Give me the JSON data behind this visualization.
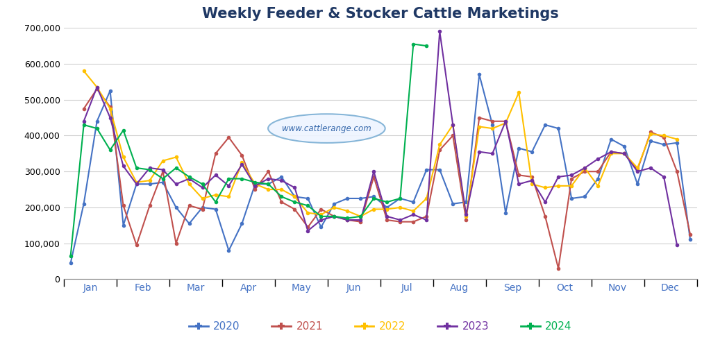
{
  "title": "Weekly Feeder & Stocker Cattle Marketings",
  "title_color": "#1F3864",
  "bg_color": "#FFFFFF",
  "watermark": "www.cattlerange.com",
  "ylim": [
    0,
    700000
  ],
  "yticks": [
    0,
    100000,
    200000,
    300000,
    400000,
    500000,
    600000,
    700000
  ],
  "series": {
    "2020": {
      "color": "#4472C4",
      "values": [
        45000,
        210000,
        440000,
        525000,
        150000,
        265000,
        265000,
        270000,
        200000,
        155000,
        200000,
        195000,
        80000,
        155000,
        265000,
        265000,
        285000,
        230000,
        225000,
        145000,
        210000,
        225000,
        225000,
        230000,
        200000,
        225000,
        215000,
        305000,
        305000,
        210000,
        215000,
        570000,
        430000,
        185000,
        365000,
        355000,
        430000,
        420000,
        225000,
        230000,
        280000,
        390000,
        370000,
        265000,
        385000,
        375000,
        380000,
        110000
      ]
    },
    "2021": {
      "color": "#C0504D",
      "values": [
        null,
        475000,
        530000,
        480000,
        205000,
        95000,
        205000,
        300000,
        100000,
        205000,
        195000,
        350000,
        395000,
        345000,
        250000,
        300000,
        215000,
        195000,
        145000,
        195000,
        175000,
        165000,
        160000,
        285000,
        165000,
        160000,
        160000,
        175000,
        360000,
        400000,
        165000,
        450000,
        440000,
        440000,
        290000,
        285000,
        175000,
        30000,
        280000,
        300000,
        300000,
        355000,
        350000,
        305000,
        410000,
        395000,
        300000,
        125000
      ]
    },
    "2022": {
      "color": "#FFC000",
      "values": [
        null,
        580000,
        535000,
        475000,
        340000,
        270000,
        275000,
        330000,
        340000,
        265000,
        225000,
        235000,
        230000,
        325000,
        265000,
        250000,
        250000,
        230000,
        185000,
        180000,
        200000,
        190000,
        175000,
        195000,
        195000,
        200000,
        190000,
        225000,
        375000,
        430000,
        175000,
        425000,
        420000,
        435000,
        520000,
        265000,
        255000,
        260000,
        260000,
        310000,
        260000,
        350000,
        350000,
        310000,
        405000,
        400000,
        390000,
        null
      ]
    },
    "2023": {
      "color": "#7030A0",
      "values": [
        null,
        440000,
        535000,
        450000,
        315000,
        265000,
        310000,
        305000,
        265000,
        280000,
        255000,
        290000,
        260000,
        320000,
        260000,
        280000,
        275000,
        255000,
        135000,
        165000,
        175000,
        165000,
        165000,
        300000,
        175000,
        165000,
        180000,
        165000,
        690000,
        430000,
        180000,
        355000,
        350000,
        440000,
        265000,
        275000,
        215000,
        285000,
        290000,
        310000,
        335000,
        355000,
        350000,
        300000,
        310000,
        285000,
        95000,
        null
      ]
    },
    "2024": {
      "color": "#00B050",
      "values": [
        65000,
        430000,
        420000,
        360000,
        415000,
        310000,
        305000,
        280000,
        310000,
        285000,
        265000,
        215000,
        280000,
        280000,
        270000,
        265000,
        230000,
        215000,
        205000,
        175000,
        175000,
        170000,
        175000,
        225000,
        215000,
        225000,
        655000,
        650000,
        null,
        null,
        null,
        null,
        null,
        null,
        null,
        null,
        null,
        null,
        null,
        null,
        null,
        null,
        null,
        null,
        null,
        null,
        null,
        null
      ]
    }
  },
  "years": [
    "2020",
    "2021",
    "2022",
    "2023",
    "2024"
  ],
  "line_colors": [
    "#4472C4",
    "#C0504D",
    "#FFC000",
    "#7030A0",
    "#00B050"
  ],
  "n_points": 48,
  "month_boundaries": [
    0,
    4,
    8,
    12,
    16,
    20,
    24,
    28,
    32,
    36,
    40,
    44,
    48
  ],
  "month_labels": [
    "Jan",
    "Feb",
    "Mar",
    "Apr",
    "May",
    "Jun",
    "Jul",
    "Aug",
    "Sep",
    "Oct",
    "Nov",
    "Dec"
  ]
}
